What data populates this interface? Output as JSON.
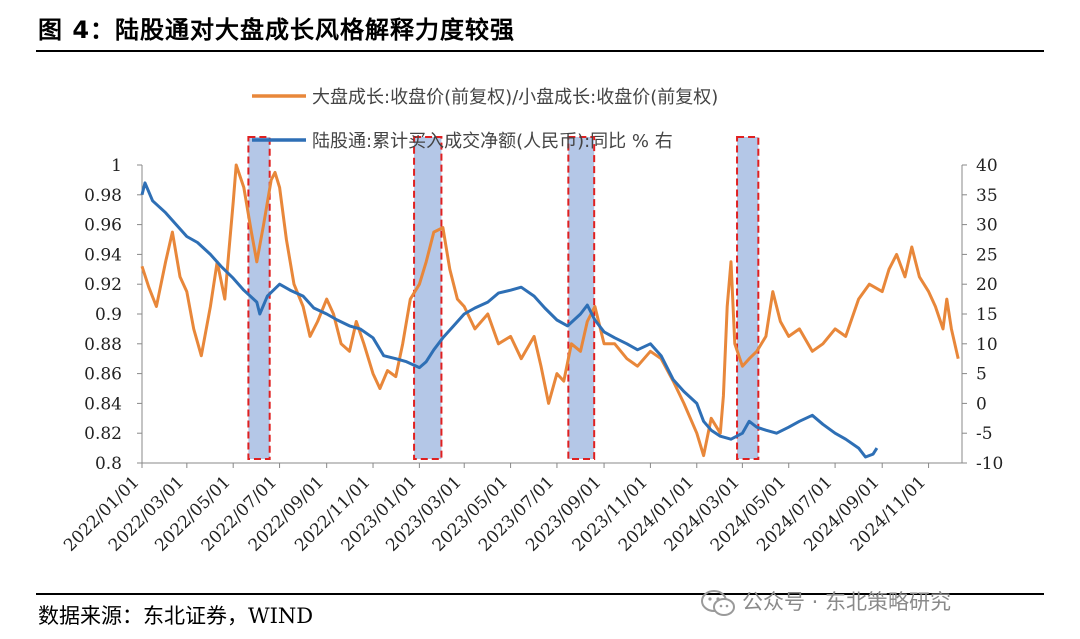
{
  "figure": {
    "title": "图 4：陆股通对大盘成长风格解释力度较强",
    "source": "数据来源：东北证券，WIND",
    "watermark": "公众号 · 东北策略研究"
  },
  "colors": {
    "orange": "#E8873A",
    "blue": "#2E6FB5",
    "highlight_fill": "#B4C7E7",
    "highlight_border": "#E02020"
  },
  "chart_data": {
    "type": "line",
    "x_tick_labels": [
      "2022/01/01",
      "2022/03/01",
      "2022/05/01",
      "2022/07/01",
      "2022/09/01",
      "2022/11/01",
      "2023/01/01",
      "2023/03/01",
      "2023/05/01",
      "2023/07/01",
      "2023/09/01",
      "2023/11/01",
      "2024/01/01",
      "2024/03/01",
      "2024/05/01",
      "2024/07/01",
      "2024/09/01",
      "2024/11/01"
    ],
    "x_range": [
      "2022/01/01",
      "2024/12/15"
    ],
    "y_left": {
      "range": [
        0.8,
        1.0
      ],
      "ticks": [
        "0.8",
        "0.82",
        "0.84",
        "0.86",
        "0.88",
        "0.9",
        "0.92",
        "0.94",
        "0.96",
        "0.98",
        "1"
      ]
    },
    "y_right": {
      "range": [
        -10,
        40
      ],
      "ticks": [
        "-10",
        "-5",
        "0",
        "5",
        "10",
        "15",
        "20",
        "25",
        "30",
        "35",
        "40"
      ]
    },
    "legend": "top-center",
    "grid": false,
    "series": [
      {
        "name": "大盘成长:收盘价(前复权)/小盘成长:收盘价(前复权)",
        "axis": "left",
        "color": "#E8873A",
        "points": [
          [
            "2022/01/01",
            0.932
          ],
          [
            "2022/01/10",
            0.918
          ],
          [
            "2022/01/20",
            0.905
          ],
          [
            "2022/02/01",
            0.935
          ],
          [
            "2022/02/10",
            0.955
          ],
          [
            "2022/02/20",
            0.925
          ],
          [
            "2022/03/01",
            0.915
          ],
          [
            "2022/03/10",
            0.89
          ],
          [
            "2022/03/20",
            0.872
          ],
          [
            "2022/04/01",
            0.905
          ],
          [
            "2022/04/10",
            0.935
          ],
          [
            "2022/04/20",
            0.91
          ],
          [
            "2022/04/25",
            0.94
          ],
          [
            "2022/05/01",
            0.975
          ],
          [
            "2022/05/05",
            1.0
          ],
          [
            "2022/05/15",
            0.985
          ],
          [
            "2022/05/25",
            0.955
          ],
          [
            "2022/06/01",
            0.935
          ],
          [
            "2022/06/10",
            0.96
          ],
          [
            "2022/06/20",
            0.99
          ],
          [
            "2022/06/25",
            0.995
          ],
          [
            "2022/07/01",
            0.985
          ],
          [
            "2022/07/10",
            0.95
          ],
          [
            "2022/07/20",
            0.92
          ],
          [
            "2022/08/01",
            0.905
          ],
          [
            "2022/08/10",
            0.885
          ],
          [
            "2022/08/20",
            0.895
          ],
          [
            "2022/09/01",
            0.91
          ],
          [
            "2022/09/10",
            0.9
          ],
          [
            "2022/09/20",
            0.88
          ],
          [
            "2022/10/01",
            0.875
          ],
          [
            "2022/10/10",
            0.895
          ],
          [
            "2022/10/20",
            0.88
          ],
          [
            "2022/11/01",
            0.86
          ],
          [
            "2022/11/10",
            0.85
          ],
          [
            "2022/11/20",
            0.862
          ],
          [
            "2022/12/01",
            0.858
          ],
          [
            "2022/12/10",
            0.88
          ],
          [
            "2022/12/20",
            0.91
          ],
          [
            "2023/01/01",
            0.92
          ],
          [
            "2023/01/10",
            0.935
          ],
          [
            "2023/01/20",
            0.955
          ],
          [
            "2023/02/01",
            0.958
          ],
          [
            "2023/02/10",
            0.93
          ],
          [
            "2023/02/20",
            0.91
          ],
          [
            "2023/03/01",
            0.905
          ],
          [
            "2023/03/15",
            0.89
          ],
          [
            "2023/04/01",
            0.9
          ],
          [
            "2023/04/15",
            0.88
          ],
          [
            "2023/05/01",
            0.885
          ],
          [
            "2023/05/15",
            0.87
          ],
          [
            "2023/06/01",
            0.885
          ],
          [
            "2023/06/10",
            0.865
          ],
          [
            "2023/06/20",
            0.84
          ],
          [
            "2023/07/01",
            0.86
          ],
          [
            "2023/07/10",
            0.855
          ],
          [
            "2023/07/20",
            0.88
          ],
          [
            "2023/08/01",
            0.875
          ],
          [
            "2023/08/10",
            0.895
          ],
          [
            "2023/08/20",
            0.905
          ],
          [
            "2023/09/01",
            0.88
          ],
          [
            "2023/09/15",
            0.88
          ],
          [
            "2023/10/01",
            0.87
          ],
          [
            "2023/10/15",
            0.865
          ],
          [
            "2023/11/01",
            0.875
          ],
          [
            "2023/11/15",
            0.87
          ],
          [
            "2023/12/01",
            0.855
          ],
          [
            "2023/12/15",
            0.84
          ],
          [
            "2024/01/01",
            0.82
          ],
          [
            "2024/01/10",
            0.805
          ],
          [
            "2024/01/20",
            0.83
          ],
          [
            "2024/02/01",
            0.82
          ],
          [
            "2024/02/05",
            0.845
          ],
          [
            "2024/02/10",
            0.905
          ],
          [
            "2024/02/15",
            0.935
          ],
          [
            "2024/02/20",
            0.88
          ],
          [
            "2024/03/01",
            0.865
          ],
          [
            "2024/03/10",
            0.87
          ],
          [
            "2024/03/20",
            0.875
          ],
          [
            "2024/04/01",
            0.885
          ],
          [
            "2024/04/10",
            0.915
          ],
          [
            "2024/04/20",
            0.895
          ],
          [
            "2024/05/01",
            0.885
          ],
          [
            "2024/05/15",
            0.89
          ],
          [
            "2024/06/01",
            0.875
          ],
          [
            "2024/06/15",
            0.88
          ],
          [
            "2024/07/01",
            0.89
          ],
          [
            "2024/07/15",
            0.885
          ],
          [
            "2024/08/01",
            0.91
          ],
          [
            "2024/08/15",
            0.92
          ],
          [
            "2024/09/01",
            0.915
          ],
          [
            "2024/09/10",
            0.93
          ],
          [
            "2024/09/20",
            0.94
          ],
          [
            "2024/10/01",
            0.925
          ],
          [
            "2024/10/10",
            0.945
          ],
          [
            "2024/10/20",
            0.925
          ],
          [
            "2024/11/01",
            0.915
          ],
          [
            "2024/11/10",
            0.905
          ],
          [
            "2024/11/20",
            0.89
          ],
          [
            "2024/11/25",
            0.91
          ],
          [
            "2024/12/01",
            0.89
          ],
          [
            "2024/12/10",
            0.87
          ]
        ]
      },
      {
        "name": "陆股通:累计买入成交净额(人民币):同比 % 右",
        "axis": "right",
        "color": "#2E6FB5",
        "points": [
          [
            "2022/01/01",
            35
          ],
          [
            "2022/01/05",
            37
          ],
          [
            "2022/01/15",
            34
          ],
          [
            "2022/02/01",
            32
          ],
          [
            "2022/02/15",
            30
          ],
          [
            "2022/03/01",
            28
          ],
          [
            "2022/03/15",
            27
          ],
          [
            "2022/04/01",
            25
          ],
          [
            "2022/04/15",
            23
          ],
          [
            "2022/05/01",
            21
          ],
          [
            "2022/05/15",
            19
          ],
          [
            "2022/06/01",
            17
          ],
          [
            "2022/06/05",
            15
          ],
          [
            "2022/06/15",
            18
          ],
          [
            "2022/07/01",
            20
          ],
          [
            "2022/07/15",
            19
          ],
          [
            "2022/08/01",
            18
          ],
          [
            "2022/08/15",
            16
          ],
          [
            "2022/09/01",
            15
          ],
          [
            "2022/09/15",
            14
          ],
          [
            "2022/10/01",
            13
          ],
          [
            "2022/10/15",
            12.5
          ],
          [
            "2022/11/01",
            11
          ],
          [
            "2022/11/15",
            8
          ],
          [
            "2022/12/01",
            7.5
          ],
          [
            "2022/12/15",
            7
          ],
          [
            "2023/01/01",
            6
          ],
          [
            "2023/01/10",
            7
          ],
          [
            "2023/01/20",
            9
          ],
          [
            "2023/02/01",
            11
          ],
          [
            "2023/02/15",
            13
          ],
          [
            "2023/03/01",
            15
          ],
          [
            "2023/03/15",
            16
          ],
          [
            "2023/04/01",
            17
          ],
          [
            "2023/04/15",
            18.5
          ],
          [
            "2023/05/01",
            19
          ],
          [
            "2023/05/15",
            19.5
          ],
          [
            "2023/06/01",
            18
          ],
          [
            "2023/06/15",
            16
          ],
          [
            "2023/07/01",
            14
          ],
          [
            "2023/07/15",
            13
          ],
          [
            "2023/08/01",
            15
          ],
          [
            "2023/08/10",
            16.5
          ],
          [
            "2023/08/20",
            14
          ],
          [
            "2023/09/01",
            12
          ],
          [
            "2023/09/15",
            11
          ],
          [
            "2023/10/01",
            10
          ],
          [
            "2023/10/15",
            9
          ],
          [
            "2023/11/01",
            10
          ],
          [
            "2023/11/15",
            8
          ],
          [
            "2023/12/01",
            4
          ],
          [
            "2023/12/15",
            2
          ],
          [
            "2024/01/01",
            0
          ],
          [
            "2024/01/10",
            -3
          ],
          [
            "2024/01/20",
            -4.5
          ],
          [
            "2024/02/01",
            -5.5
          ],
          [
            "2024/02/15",
            -6
          ],
          [
            "2024/03/01",
            -5
          ],
          [
            "2024/03/10",
            -3
          ],
          [
            "2024/03/20",
            -4
          ],
          [
            "2024/04/01",
            -4.5
          ],
          [
            "2024/04/15",
            -5
          ],
          [
            "2024/05/01",
            -4
          ],
          [
            "2024/05/15",
            -3
          ],
          [
            "2024/06/01",
            -2
          ],
          [
            "2024/06/15",
            -3.5
          ],
          [
            "2024/07/01",
            -5
          ],
          [
            "2024/07/15",
            -6
          ],
          [
            "2024/08/01",
            -7.5
          ],
          [
            "2024/08/10",
            -9
          ],
          [
            "2024/08/20",
            -8.5
          ],
          [
            "2024/08/25",
            -7.5
          ]
        ]
      }
    ],
    "highlight_periods": [
      [
        "2022/05/21",
        "2022/06/18"
      ],
      [
        "2022/12/25",
        "2023/01/30"
      ],
      [
        "2023/07/16",
        "2023/08/19"
      ],
      [
        "2024/02/23",
        "2024/03/22"
      ]
    ]
  }
}
